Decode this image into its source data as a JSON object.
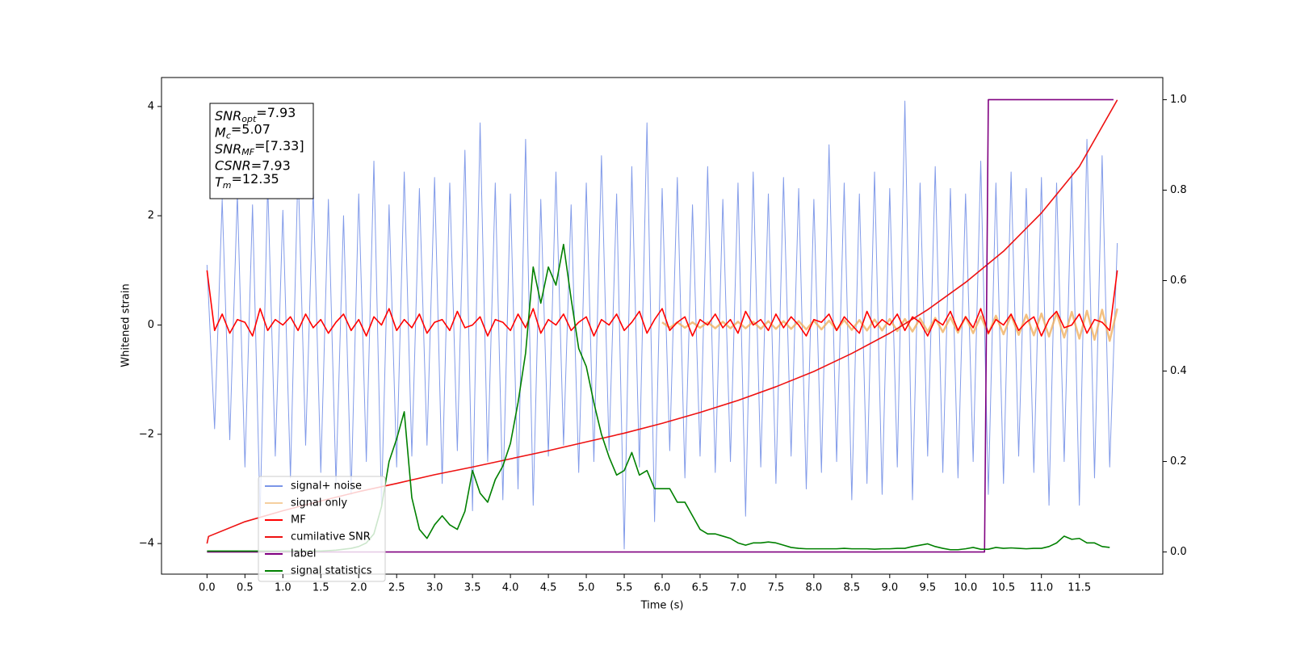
{
  "chart_data": {
    "type": "line",
    "xlabel": "Time (s)",
    "ylabel": "Whitened strain",
    "xlim": [
      -0.6,
      12.6
    ],
    "ylim": [
      -4.56,
      4.53
    ],
    "y2lim": [
      -0.049,
      1.049
    ],
    "xticks": [
      {
        "value": 0,
        "label": "0.0"
      },
      {
        "value": 0.5,
        "label": "0.5"
      },
      {
        "value": 1,
        "label": "1.0"
      },
      {
        "value": 1.5,
        "label": "1.5"
      },
      {
        "value": 2,
        "label": "2.0"
      },
      {
        "value": 2.5,
        "label": "2.5"
      },
      {
        "value": 3,
        "label": "3.0"
      },
      {
        "value": 3.5,
        "label": "3.5"
      },
      {
        "value": 4,
        "label": "4.0"
      },
      {
        "value": 4.5,
        "label": "4.5"
      },
      {
        "value": 5,
        "label": "5.0"
      },
      {
        "value": 5.5,
        "label": "5.5"
      },
      {
        "value": 6,
        "label": "6.0"
      },
      {
        "value": 6.5,
        "label": "6.5"
      },
      {
        "value": 7,
        "label": "7.0"
      },
      {
        "value": 7.5,
        "label": "7.5"
      },
      {
        "value": 8,
        "label": "8.0"
      },
      {
        "value": 8.5,
        "label": "8.5"
      },
      {
        "value": 9,
        "label": "9.0"
      },
      {
        "value": 9.5,
        "label": "9.5"
      },
      {
        "value": 10,
        "label": "10.0"
      },
      {
        "value": 10.5,
        "label": "10.5"
      },
      {
        "value": 11,
        "label": "11.0"
      },
      {
        "value": 11.5,
        "label": "11.5"
      }
    ],
    "yticks": [
      {
        "value": -4,
        "label": "−4"
      },
      {
        "value": -2,
        "label": "−2"
      },
      0,
      2,
      4
    ],
    "y2ticks": [
      {
        "value": 0,
        "label": "0.0"
      },
      {
        "value": 0.2,
        "label": "0.2"
      },
      {
        "value": 0.4,
        "label": "0.4"
      },
      {
        "value": 0.6,
        "label": "0.6"
      },
      {
        "value": 0.8,
        "label": "0.8"
      },
      {
        "value": 1,
        "label": "1.0"
      }
    ],
    "annotation": [
      {
        "base": "SNR",
        "sub": "opt",
        "text": "=7.93"
      },
      {
        "base": "M",
        "sub": "c",
        "text": "=5.07"
      },
      {
        "base": "SNR",
        "sub": "MF",
        "text": "=[7.33]"
      },
      {
        "base": "CSNR",
        "text": "=7.93"
      },
      {
        "base": "T",
        "sub": "m",
        "text": "=12.35"
      }
    ],
    "x": [
      0,
      0.1,
      0.2,
      0.3,
      0.4,
      0.5,
      0.6,
      0.7,
      0.8,
      0.9,
      1,
      1.1,
      1.2,
      1.3,
      1.4,
      1.5,
      1.6,
      1.7,
      1.8,
      1.9,
      2,
      2.1,
      2.2,
      2.3,
      2.4,
      2.5,
      2.6,
      2.7,
      2.8,
      2.9,
      3,
      3.1,
      3.2,
      3.3,
      3.4,
      3.5,
      3.6,
      3.7,
      3.8,
      3.9,
      4,
      4.1,
      4.2,
      4.3,
      4.4,
      4.5,
      4.6,
      4.7,
      4.8,
      4.9,
      5,
      5.1,
      5.2,
      5.3,
      5.4,
      5.5,
      5.6,
      5.7,
      5.8,
      5.9,
      6,
      6.1,
      6.2,
      6.3,
      6.4,
      6.5,
      6.6,
      6.7,
      6.8,
      6.9,
      7,
      7.1,
      7.2,
      7.3,
      7.4,
      7.5,
      7.6,
      7.7,
      7.8,
      7.9,
      8,
      8.1,
      8.2,
      8.3,
      8.4,
      8.5,
      8.6,
      8.7,
      8.8,
      8.9,
      9,
      9.1,
      9.2,
      9.3,
      9.4,
      9.5,
      9.6,
      9.7,
      9.8,
      9.9,
      10,
      10.1,
      10.2,
      10.3,
      10.4,
      10.5,
      10.6,
      10.7,
      10.8,
      10.9,
      11,
      11.1,
      11.2,
      11.3,
      11.4,
      11.5,
      11.6,
      11.7,
      11.8,
      11.9,
      12
    ],
    "series": [
      {
        "name": "signal+ noise",
        "color": "#7b96e8",
        "values": [
          1.1,
          -1.9,
          2.3,
          -2.1,
          2.4,
          -2.6,
          2.2,
          -3.5,
          2.6,
          -2.4,
          2.1,
          -2.8,
          2.9,
          -2.2,
          2.5,
          -2.7,
          2.3,
          -2.9,
          2.0,
          -3.1,
          2.4,
          -2.5,
          3.0,
          -3.3,
          2.2,
          -2.6,
          2.8,
          -2.4,
          2.5,
          -2.2,
          2.7,
          -2.9,
          2.6,
          -2.3,
          3.2,
          -3.4,
          3.7,
          -2.5,
          2.6,
          -3.2,
          2.4,
          -3.0,
          3.4,
          -3.3,
          2.3,
          -2.4,
          2.8,
          -2.2,
          2.2,
          -2.7,
          2.6,
          -2.5,
          3.1,
          -2.3,
          2.4,
          -4.1,
          2.9,
          -2.6,
          3.7,
          -3.6,
          2.5,
          -2.3,
          2.7,
          -2.8,
          2.2,
          -2.4,
          2.9,
          -2.7,
          2.3,
          -2.5,
          2.6,
          -3.5,
          2.8,
          -2.6,
          2.4,
          -2.9,
          2.7,
          -2.4,
          2.5,
          -3.0,
          2.3,
          -2.7,
          3.3,
          -2.5,
          2.6,
          -3.2,
          2.4,
          -2.9,
          2.8,
          -3.1,
          2.5,
          -2.6,
          4.1,
          -3.2,
          2.6,
          -2.4,
          2.9,
          -2.7,
          2.5,
          -2.8,
          2.4,
          -2.5,
          3.0,
          -3.1,
          2.6,
          -2.9,
          2.8,
          -2.4,
          2.5,
          -2.7,
          2.7,
          -3.3,
          2.6,
          -2.5,
          2.8,
          -3.3,
          3.4,
          -2.8,
          3.1,
          -2.6,
          1.5
        ]
      },
      {
        "name": "signal only",
        "color": "#f0b060",
        "x": [
          6,
          6.1,
          6.2,
          6.3,
          6.4,
          6.5,
          6.6,
          6.7,
          6.8,
          6.9,
          7,
          7.1,
          7.2,
          7.3,
          7.4,
          7.5,
          7.6,
          7.7,
          7.8,
          7.9,
          8,
          8.1,
          8.2,
          8.3,
          8.4,
          8.5,
          8.6,
          8.7,
          8.8,
          8.9,
          9,
          9.1,
          9.2,
          9.3,
          9.4,
          9.5,
          9.6,
          9.7,
          9.8,
          9.9,
          10,
          10.1,
          10.2,
          10.3,
          10.4,
          10.5,
          10.6,
          10.7,
          10.8,
          10.9,
          11,
          11.1,
          11.2,
          11.3,
          11.4,
          11.5,
          11.6,
          11.7,
          11.8,
          11.9,
          12
        ],
        "values": [
          0.05,
          -0.05,
          0.05,
          -0.05,
          0.05,
          -0.05,
          0.05,
          -0.06,
          0.06,
          -0.06,
          0.06,
          -0.06,
          0.06,
          -0.07,
          0.07,
          -0.07,
          0.07,
          -0.07,
          0.07,
          -0.08,
          0.08,
          -0.08,
          0.08,
          -0.09,
          0.09,
          -0.09,
          0.09,
          -0.1,
          0.1,
          -0.1,
          0.11,
          -0.11,
          0.11,
          -0.12,
          0.12,
          -0.12,
          0.13,
          -0.13,
          0.14,
          -0.14,
          0.15,
          -0.15,
          0.16,
          -0.16,
          0.17,
          -0.17,
          0.18,
          -0.18,
          0.19,
          -0.19,
          0.21,
          -0.21,
          0.22,
          -0.23,
          0.24,
          -0.25,
          0.26,
          -0.27,
          0.28,
          -0.29,
          0.3
        ]
      },
      {
        "name": "MF",
        "color": "#ff0000",
        "values": [
          1.0,
          -0.1,
          0.2,
          -0.15,
          0.1,
          0.05,
          -0.2,
          0.3,
          -0.1,
          0.1,
          0.0,
          0.15,
          -0.1,
          0.2,
          -0.05,
          0.1,
          -0.15,
          0.05,
          0.2,
          -0.1,
          0.1,
          -0.2,
          0.15,
          0.0,
          0.3,
          -0.1,
          0.1,
          -0.05,
          0.2,
          -0.15,
          0.05,
          0.1,
          -0.1,
          0.25,
          -0.05,
          0.0,
          0.15,
          -0.2,
          0.1,
          0.05,
          -0.1,
          0.2,
          -0.05,
          0.3,
          -0.15,
          0.1,
          0.0,
          0.2,
          -0.1,
          0.05,
          0.15,
          -0.2,
          0.1,
          0.0,
          0.2,
          -0.1,
          0.05,
          0.25,
          -0.15,
          0.1,
          0.3,
          -0.1,
          0.05,
          0.15,
          -0.2,
          0.1,
          0.0,
          0.2,
          -0.05,
          0.1,
          -0.15,
          0.25,
          0.0,
          0.1,
          -0.1,
          0.2,
          -0.05,
          0.15,
          0.0,
          -0.2,
          0.1,
          0.05,
          0.2,
          -0.1,
          0.15,
          0.0,
          -0.15,
          0.25,
          -0.05,
          0.1,
          0.0,
          0.2,
          -0.1,
          0.15,
          0.05,
          -0.2,
          0.1,
          0.0,
          0.25,
          -0.1,
          0.15,
          -0.05,
          0.3,
          -0.15,
          0.1,
          0.0,
          0.2,
          -0.1,
          0.05,
          0.15,
          -0.2,
          0.1,
          0.25,
          -0.05,
          0.0,
          0.2,
          -0.15,
          0.1,
          0.05,
          -0.1,
          1.0
        ]
      },
      {
        "name": "cumilative SNR",
        "color": "#ee1111",
        "x": [
          0,
          0.02,
          0.5,
          1,
          1.5,
          2,
          2.5,
          3,
          3.5,
          4,
          4.5,
          5,
          5.5,
          6,
          6.5,
          7,
          7.5,
          8,
          8.5,
          9,
          9.5,
          10,
          10.5,
          11,
          11.5,
          12
        ],
        "values": [
          -4.0,
          -3.87,
          -3.6,
          -3.4,
          -3.22,
          -3.05,
          -2.9,
          -2.74,
          -2.6,
          -2.45,
          -2.3,
          -2.14,
          -1.98,
          -1.8,
          -1.6,
          -1.38,
          -1.13,
          -0.85,
          -0.52,
          -0.15,
          0.28,
          0.78,
          1.35,
          2.05,
          2.9,
          4.12
        ]
      },
      {
        "name": "label",
        "color": "#800080",
        "axis": "y2",
        "x": [
          0,
          10.25,
          10.3,
          11.95
        ],
        "values": [
          0,
          0,
          1,
          1
        ]
      },
      {
        "name": "signal statistics",
        "color": "#008000",
        "axis": "y2",
        "values": [
          0.002,
          0.002,
          0.002,
          0.002,
          0.002,
          0.002,
          0.002,
          0.002,
          0.002,
          0.002,
          0.002,
          0.002,
          0.002,
          0.002,
          0.002,
          0.002,
          0.003,
          0.004,
          0.006,
          0.008,
          0.012,
          0.02,
          0.04,
          0.1,
          0.2,
          0.25,
          0.31,
          0.12,
          0.05,
          0.03,
          0.06,
          0.08,
          0.06,
          0.05,
          0.09,
          0.18,
          0.13,
          0.11,
          0.16,
          0.19,
          0.24,
          0.33,
          0.44,
          0.63,
          0.55,
          0.63,
          0.59,
          0.68,
          0.56,
          0.45,
          0.41,
          0.33,
          0.26,
          0.21,
          0.17,
          0.18,
          0.22,
          0.17,
          0.18,
          0.14,
          0.14,
          0.14,
          0.11,
          0.11,
          0.08,
          0.05,
          0.04,
          0.04,
          0.035,
          0.03,
          0.02,
          0.015,
          0.02,
          0.02,
          0.022,
          0.02,
          0.015,
          0.01,
          0.008,
          0.007,
          0.007,
          0.007,
          0.007,
          0.007,
          0.008,
          0.007,
          0.007,
          0.007,
          0.006,
          0.007,
          0.007,
          0.008,
          0.008,
          0.012,
          0.015,
          0.018,
          0.012,
          0.008,
          0.005,
          0.005,
          0.007,
          0.01,
          0.006,
          0.006,
          0.01,
          0.008,
          0.009,
          0.008,
          0.007,
          0.008,
          0.008,
          0.012,
          0.02,
          0.035,
          0.028,
          0.03,
          0.02,
          0.02,
          0.012,
          0.01,
          null
        ]
      }
    ]
  }
}
